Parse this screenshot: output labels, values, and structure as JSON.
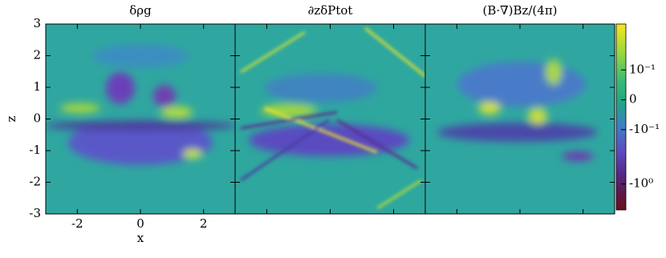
{
  "chart_data": [
    {
      "type": "heatmap",
      "title": "δρg",
      "xlabel": "x",
      "ylabel": "z",
      "xlim": [
        -3,
        3
      ],
      "ylim": [
        -3,
        3
      ],
      "xticks": [
        -2,
        0,
        2
      ],
      "yticks": [
        -3,
        -2,
        -1,
        0,
        1,
        2,
        3
      ]
    },
    {
      "type": "heatmap",
      "title": "∂zδPtot",
      "xlim": [
        -3,
        3
      ],
      "ylim": [
        -3,
        3
      ],
      "xticks": [
        -2,
        0,
        2
      ],
      "yticks": [
        -3,
        -2,
        -1,
        0,
        1,
        2,
        3
      ]
    },
    {
      "type": "heatmap",
      "title": "(B·∇)Bz/(4π)",
      "xlim": [
        -3,
        3
      ],
      "ylim": [
        -3,
        3
      ],
      "xticks": [
        -2,
        0,
        2
      ],
      "yticks": [
        -3,
        -2,
        -1,
        0,
        1,
        2,
        3
      ]
    },
    {
      "type": "colorbar",
      "scale": "symlog",
      "linthresh": 0.1,
      "linscale": 0.55,
      "ylim": [
        -3,
        0.7
      ],
      "yticks": [
        {
          "value": 0.1,
          "label": "10⁻¹"
        },
        0,
        {
          "value": -0.1,
          "label": "-10⁻¹"
        },
        {
          "value": -1,
          "label": "-10⁰"
        }
      ]
    }
  ]
}
